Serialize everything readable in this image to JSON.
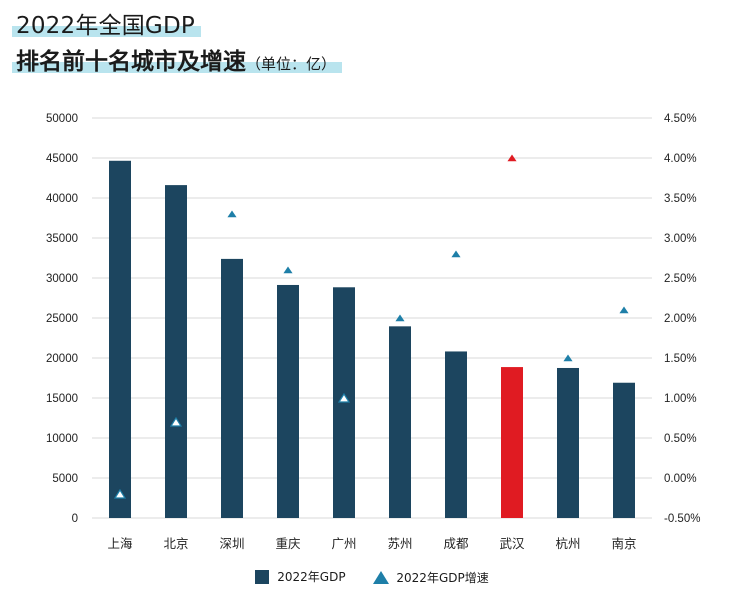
{
  "title": {
    "line1": "2022年全国GDP",
    "line2": "排名前十名城市及增速",
    "unit": "（单位：亿）"
  },
  "colors": {
    "bar": "#1c455f",
    "highlight_bar": "#e01b22",
    "marker": "#1e7fa8",
    "highlight_marker": "#e01b22",
    "title_highlight": "#b9e4ee",
    "grid": "#d9d9d9"
  },
  "chart_data": {
    "type": "bar",
    "categories": [
      "上海",
      "北京",
      "深圳",
      "重庆",
      "广州",
      "苏州",
      "成都",
      "武汉",
      "杭州",
      "南京"
    ],
    "series": [
      {
        "name": "2022年GDP",
        "type": "bar",
        "axis": "left",
        "values": [
          44653,
          41611,
          32388,
          29129,
          28839,
          23958,
          20818,
          18866,
          18753,
          16908
        ]
      },
      {
        "name": "2022年GDP增速",
        "type": "marker",
        "axis": "right",
        "values": [
          -0.2,
          0.7,
          3.3,
          2.6,
          1.0,
          2.0,
          2.8,
          4.0,
          1.5,
          2.1
        ]
      }
    ],
    "highlight_index": 7,
    "ylim_left": [
      0,
      50000
    ],
    "yticks_left": [
      "0",
      "5000",
      "10000",
      "15000",
      "20000",
      "25000",
      "30000",
      "35000",
      "40000",
      "45000",
      "50000"
    ],
    "ylim_right": [
      -0.5,
      4.5
    ],
    "yticks_right": [
      "-0.50%",
      "0.00%",
      "0.50%",
      "1.00%",
      "1.50%",
      "2.00%",
      "2.50%",
      "3.00%",
      "3.50%",
      "4.00%",
      "4.50%"
    ],
    "grid": true,
    "legend_position": "bottom"
  }
}
